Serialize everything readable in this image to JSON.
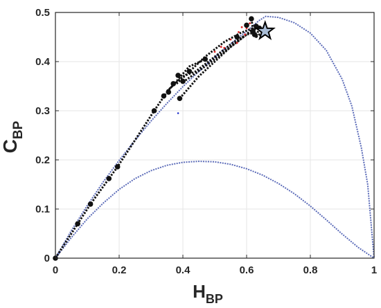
{
  "chart_data": {
    "type": "scatter",
    "xlabel": "H",
    "xlabel_sub": "BP",
    "ylabel": "C",
    "ylabel_sub": "BP",
    "xlim": [
      0,
      1
    ],
    "ylim": [
      0,
      0.5
    ],
    "xticks": [
      0,
      0.2,
      0.4,
      0.6,
      0.8,
      1
    ],
    "xtick_labels": [
      "0",
      "0.2",
      "0.4",
      "0.6",
      "0.8",
      "1"
    ],
    "yticks": [
      0,
      0.1,
      0.2,
      0.3,
      0.4,
      0.5
    ],
    "ytick_labels": [
      "0",
      "0.1",
      "0.2",
      "0.3",
      "0.4",
      "0.5"
    ],
    "grid": true,
    "colors": {
      "bound": "#5a6ab8",
      "path": "#111111",
      "red_points": "#dd2222",
      "blue_point": "#2233cc",
      "star_fill": "#a9bdd6",
      "axis": "#262626",
      "grid": "#e6e6e6"
    },
    "upper_bound": {
      "x": [
        0,
        0.05,
        0.1,
        0.15,
        0.2,
        0.25,
        0.3,
        0.35,
        0.4,
        0.45,
        0.5,
        0.55,
        0.6,
        0.64,
        0.66,
        0.7,
        0.75,
        0.8,
        0.85,
        0.9,
        0.93,
        0.96,
        0.98,
        1.0
      ],
      "y": [
        0,
        0.056,
        0.107,
        0.155,
        0.199,
        0.24,
        0.279,
        0.315,
        0.349,
        0.38,
        0.409,
        0.436,
        0.462,
        0.484,
        0.492,
        0.49,
        0.479,
        0.458,
        0.423,
        0.364,
        0.31,
        0.225,
        0.15,
        0
      ]
    },
    "lower_bound": {
      "x": [
        0,
        0.05,
        0.1,
        0.15,
        0.2,
        0.25,
        0.3,
        0.35,
        0.4,
        0.45,
        0.5,
        0.55,
        0.6,
        0.65,
        0.7,
        0.75,
        0.8,
        0.85,
        0.9,
        0.95,
        1.0
      ],
      "y": [
        0,
        0.042,
        0.08,
        0.112,
        0.14,
        0.162,
        0.178,
        0.189,
        0.195,
        0.197,
        0.196,
        0.191,
        0.182,
        0.169,
        0.152,
        0.131,
        0.106,
        0.078,
        0.049,
        0.022,
        0
      ]
    },
    "paths": [
      [
        [
          0,
          0
        ],
        [
          0.07,
          0.07
        ],
        [
          0.11,
          0.11
        ],
        [
          0.168,
          0.162
        ],
        [
          0.195,
          0.186
        ],
        [
          0.28,
          0.27
        ],
        [
          0.31,
          0.3
        ],
        [
          0.35,
          0.338
        ],
        [
          0.38,
          0.36
        ],
        [
          0.42,
          0.39
        ],
        [
          0.455,
          0.4
        ],
        [
          0.47,
          0.405
        ]
      ],
      [
        [
          0.35,
          0.34
        ],
        [
          0.4,
          0.37
        ],
        [
          0.44,
          0.38
        ],
        [
          0.5,
          0.41
        ],
        [
          0.56,
          0.44
        ],
        [
          0.6,
          0.455
        ],
        [
          0.635,
          0.472
        ]
      ],
      [
        [
          0.38,
          0.355
        ],
        [
          0.47,
          0.41
        ],
        [
          0.53,
          0.44
        ],
        [
          0.58,
          0.458
        ],
        [
          0.62,
          0.468
        ],
        [
          0.65,
          0.465
        ]
      ],
      [
        [
          0.39,
          0.325
        ],
        [
          0.45,
          0.37
        ],
        [
          0.5,
          0.4
        ],
        [
          0.55,
          0.43
        ],
        [
          0.6,
          0.455
        ],
        [
          0.63,
          0.46
        ]
      ],
      [
        [
          0.4,
          0.358
        ],
        [
          0.48,
          0.395
        ],
        [
          0.54,
          0.425
        ],
        [
          0.59,
          0.45
        ],
        [
          0.625,
          0.47
        ]
      ],
      [
        [
          0.615,
          0.487
        ],
        [
          0.62,
          0.465
        ],
        [
          0.64,
          0.47
        ],
        [
          0.63,
          0.45
        ],
        [
          0.65,
          0.46
        ]
      ]
    ],
    "markers": [
      [
        0,
        0
      ],
      [
        0.07,
        0.07
      ],
      [
        0.11,
        0.11
      ],
      [
        0.168,
        0.162
      ],
      [
        0.195,
        0.186
      ],
      [
        0.31,
        0.3
      ],
      [
        0.34,
        0.33
      ],
      [
        0.355,
        0.338
      ],
      [
        0.37,
        0.355
      ],
      [
        0.385,
        0.372
      ],
      [
        0.42,
        0.38
      ],
      [
        0.47,
        0.405
      ],
      [
        0.39,
        0.325
      ],
      [
        0.4,
        0.36
      ],
      [
        0.615,
        0.487
      ],
      [
        0.57,
        0.45
      ],
      [
        0.62,
        0.462
      ],
      [
        0.63,
        0.472
      ],
      [
        0.64,
        0.468
      ],
      [
        0.6,
        0.474
      ],
      [
        0.625,
        0.455
      ]
    ],
    "red_points": [
      [
        0.5,
        0.42
      ],
      [
        0.52,
        0.43
      ],
      [
        0.55,
        0.445
      ],
      [
        0.575,
        0.46
      ],
      [
        0.585,
        0.47
      ],
      [
        0.6,
        0.468
      ],
      [
        0.61,
        0.478
      ],
      [
        0.595,
        0.455
      ],
      [
        0.57,
        0.438
      ],
      [
        0.53,
        0.428
      ]
    ],
    "blue_points": [
      [
        0.385,
        0.295
      ]
    ],
    "star": [
      0.658,
      0.462
    ]
  }
}
